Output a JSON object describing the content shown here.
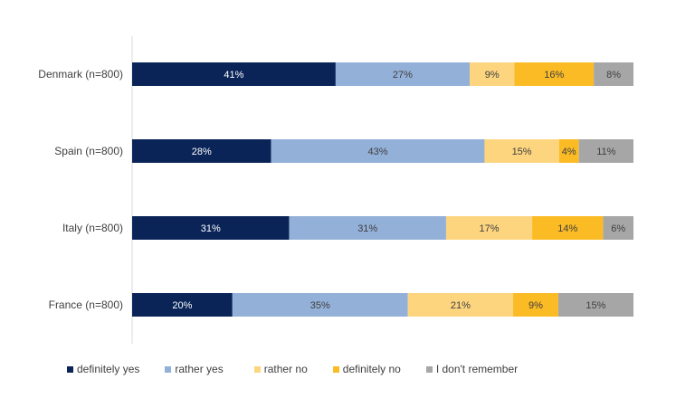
{
  "chart_data": {
    "type": "bar",
    "orientation": "horizontal",
    "stacked": true,
    "percent": true,
    "xlim": [
      0,
      100
    ],
    "grid": false,
    "legend_position": "bottom",
    "categories": [
      "Denmark (n=800)",
      "Spain (n=800)",
      "Italy (n=800)",
      "France (n=800)"
    ],
    "series": [
      {
        "name": "definitely yes",
        "color": "#0a2458",
        "label_color": "#ffffff",
        "values": [
          41,
          28,
          31,
          20
        ]
      },
      {
        "name": "rather yes",
        "color": "#93b0d8",
        "label_color": "#404040",
        "values": [
          27,
          43,
          31,
          35
        ]
      },
      {
        "name": "rather no",
        "color": "#fdd57f",
        "label_color": "#404040",
        "values": [
          9,
          15,
          17,
          21
        ]
      },
      {
        "name": "definitely no",
        "color": "#fbbb24",
        "label_color": "#404040",
        "values": [
          16,
          4,
          14,
          9
        ]
      },
      {
        "name": "I don't remember",
        "color": "#a6a6a6",
        "label_color": "#404040",
        "values": [
          8,
          11,
          6,
          15
        ]
      }
    ]
  }
}
